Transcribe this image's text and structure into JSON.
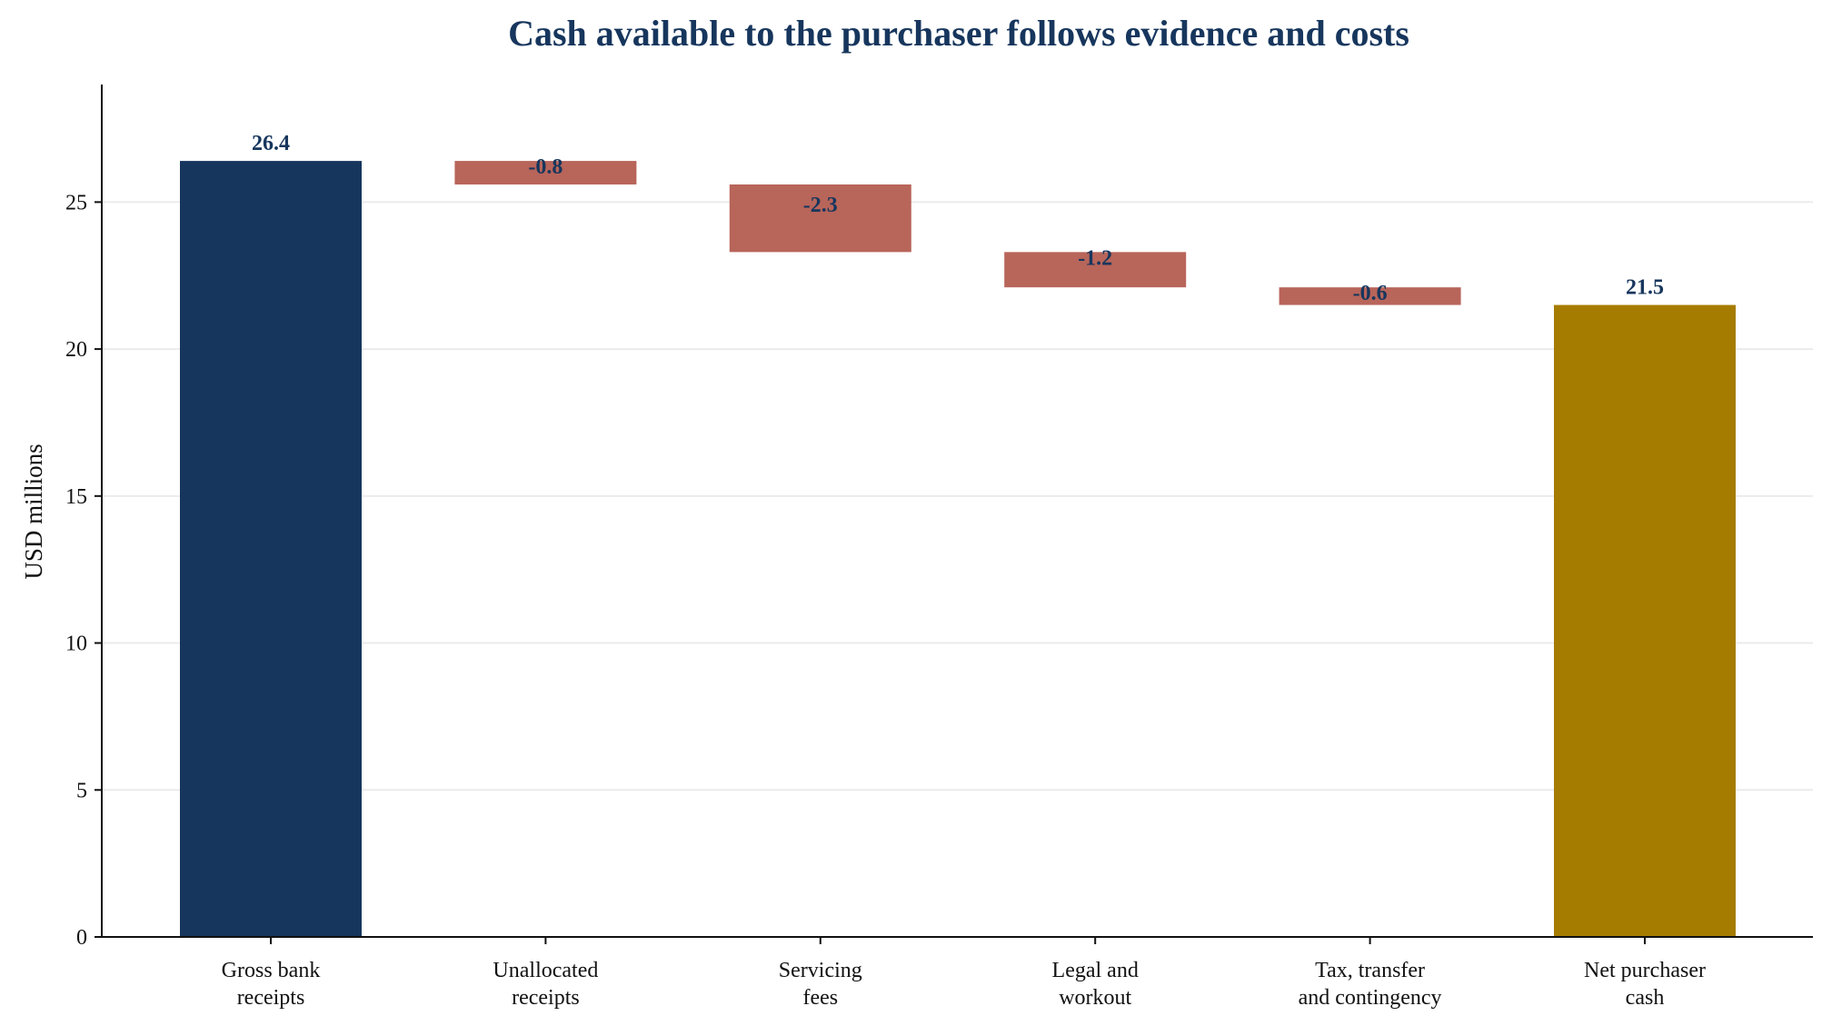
{
  "chart_data": {
    "type": "bar",
    "subtype": "waterfall",
    "title": "Cash available to the purchaser follows evidence and costs",
    "xlabel": "",
    "ylabel": "USD millions",
    "ylim": [
      0,
      29
    ],
    "yticks": [
      0,
      5,
      10,
      15,
      20,
      25
    ],
    "grid": "horizontal",
    "categories": [
      [
        "Gross bank",
        "receipts"
      ],
      [
        "Unallocated",
        "receipts"
      ],
      [
        "Servicing",
        "fees"
      ],
      [
        "Legal and",
        "workout"
      ],
      [
        "Tax, transfer",
        "and contingency"
      ],
      [
        "Net purchaser",
        "cash"
      ]
    ],
    "steps": [
      {
        "kind": "total",
        "value": 26.4,
        "label": "26.4"
      },
      {
        "kind": "delta",
        "value": -0.8,
        "label": "-0.8"
      },
      {
        "kind": "delta",
        "value": -2.3,
        "label": "-2.3"
      },
      {
        "kind": "delta",
        "value": -1.2,
        "label": "-1.2"
      },
      {
        "kind": "delta",
        "value": -0.6,
        "label": "-0.6"
      },
      {
        "kind": "total",
        "value": 21.5,
        "label": "21.5"
      }
    ],
    "colors": {
      "start_total": "#17365d",
      "decrease": "#b8655a",
      "end_total": "#a67c00",
      "title": "#17365d",
      "data_label": "#17365d",
      "grid": "#ebebeb",
      "axis": "#111111"
    }
  }
}
